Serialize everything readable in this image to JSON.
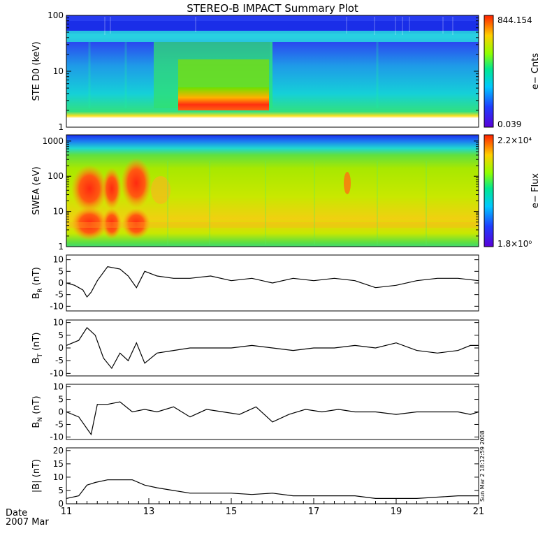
{
  "chart_data": {
    "type": "line",
    "title": "STEREO-B IMPACT Summary Plot",
    "x_axis": {
      "label_line1": "Date",
      "label_line2": "2007 Mar",
      "range": [
        11,
        21
      ],
      "ticks": [
        "11",
        "13",
        "15",
        "17",
        "19",
        "21"
      ]
    },
    "timestamp": "Sun Mar  2 18:12:59 2008",
    "panels": [
      {
        "name": "ste-d0",
        "kind": "spectrogram",
        "ylabel": "STE D0 (keV)",
        "yscale": "log",
        "ylim": [
          1,
          100
        ],
        "yticks": [
          "1",
          "10",
          "100"
        ],
        "colorbar": {
          "label": "e− Cnts",
          "max_label": "844.154",
          "min_label": "0.039"
        },
        "colors": {
          "background": "#1ad2e6",
          "low": "#2f3cf0",
          "band": "#22cc80",
          "hot": "#ff3010",
          "warm": "#ffe020"
        }
      },
      {
        "name": "swea",
        "kind": "spectrogram",
        "ylabel": "SWEA (eV)",
        "yscale": "log",
        "ylim": [
          1,
          1500
        ],
        "yticks": [
          "1",
          "10",
          "100",
          "1000"
        ],
        "colorbar": {
          "label": "e− Flux",
          "max_label": "2.2×10⁴",
          "min_label": "1.8×10⁰"
        },
        "colors": {
          "background": "#9ee000",
          "top": "#1c2cf0",
          "hot": "#ff4010",
          "warm": "#ffc020"
        }
      },
      {
        "name": "br",
        "kind": "line",
        "ylabel_main": "B",
        "ylabel_sub": "R",
        "ylabel_unit": " (nT)",
        "ylim": [
          -12,
          12
        ],
        "yticks": [
          -10,
          -5,
          0,
          5,
          10
        ],
        "series": [
          {
            "x": [
              11.0,
              11.2,
              11.4,
              11.5,
              11.6,
              11.75,
              12.0,
              12.3,
              12.5,
              12.7,
              12.9,
              13.2,
              13.6,
              14.0,
              14.5,
              15.0,
              15.5,
              16.0,
              16.5,
              17.0,
              17.5,
              18.0,
              18.5,
              19.0,
              19.5,
              20.0,
              20.5,
              21.0
            ],
            "values": [
              0,
              -1,
              -3,
              -6,
              -4,
              1,
              7,
              6,
              3,
              -2,
              5,
              3,
              2,
              2,
              3,
              1,
              2,
              0,
              2,
              1,
              2,
              1,
              -2,
              -1,
              1,
              2,
              2,
              1
            ]
          }
        ]
      },
      {
        "name": "bt",
        "kind": "line",
        "ylabel_main": "B",
        "ylabel_sub": "T",
        "ylabel_unit": " (nT)",
        "ylim": [
          -11,
          11
        ],
        "yticks": [
          -10,
          -5,
          0,
          5,
          10
        ],
        "series": [
          {
            "x": [
              11.0,
              11.3,
              11.5,
              11.7,
              11.9,
              12.1,
              12.3,
              12.5,
              12.7,
              12.9,
              13.2,
              13.6,
              14.0,
              14.5,
              15.0,
              15.5,
              16.0,
              16.5,
              17.0,
              17.5,
              18.0,
              18.5,
              19.0,
              19.5,
              20.0,
              20.5,
              20.8,
              21.0
            ],
            "values": [
              1,
              3,
              8,
              5,
              -4,
              -8,
              -2,
              -5,
              2,
              -6,
              -2,
              -1,
              0,
              0,
              0,
              1,
              0,
              -1,
              0,
              0,
              1,
              0,
              2,
              -1,
              -2,
              -1,
              1,
              1
            ]
          }
        ]
      },
      {
        "name": "bn",
        "kind": "line",
        "ylabel_main": "B",
        "ylabel_sub": "N",
        "ylabel_unit": " (nT)",
        "ylim": [
          -11,
          11
        ],
        "yticks": [
          -10,
          -5,
          0,
          5,
          10
        ],
        "series": [
          {
            "x": [
              11.0,
              11.3,
              11.6,
              11.75,
              12.0,
              12.3,
              12.6,
              12.9,
              13.2,
              13.6,
              14.0,
              14.4,
              14.8,
              15.2,
              15.6,
              16.0,
              16.4,
              16.8,
              17.2,
              17.6,
              18.0,
              18.5,
              19.0,
              19.5,
              20.0,
              20.5,
              20.8,
              21.0
            ],
            "values": [
              0,
              -2,
              -9,
              3,
              3,
              4,
              0,
              1,
              0,
              2,
              -2,
              1,
              0,
              -1,
              2,
              -4,
              -1,
              1,
              0,
              1,
              0,
              0,
              -1,
              0,
              0,
              0,
              -1,
              0
            ]
          }
        ]
      },
      {
        "name": "bmag",
        "kind": "line",
        "ylabel_main": "|B|",
        "ylabel_sub": "",
        "ylabel_unit": " (nT)",
        "ylim": [
          0,
          21
        ],
        "yticks": [
          0,
          5,
          10,
          15,
          20
        ],
        "series": [
          {
            "x": [
              11.0,
              11.3,
              11.5,
              11.7,
              12.0,
              12.3,
              12.6,
              12.9,
              13.2,
              13.6,
              14.0,
              14.5,
              15.0,
              15.5,
              16.0,
              16.5,
              17.0,
              17.5,
              18.0,
              18.5,
              19.0,
              19.5,
              20.0,
              20.5,
              21.0
            ],
            "values": [
              2,
              3,
              7,
              8,
              9,
              9,
              9,
              7,
              6,
              5,
              4,
              4,
              4,
              3.5,
              4,
              3,
              3,
              3,
              3,
              2,
              2,
              2,
              2.5,
              3,
              3
            ]
          }
        ]
      }
    ]
  }
}
